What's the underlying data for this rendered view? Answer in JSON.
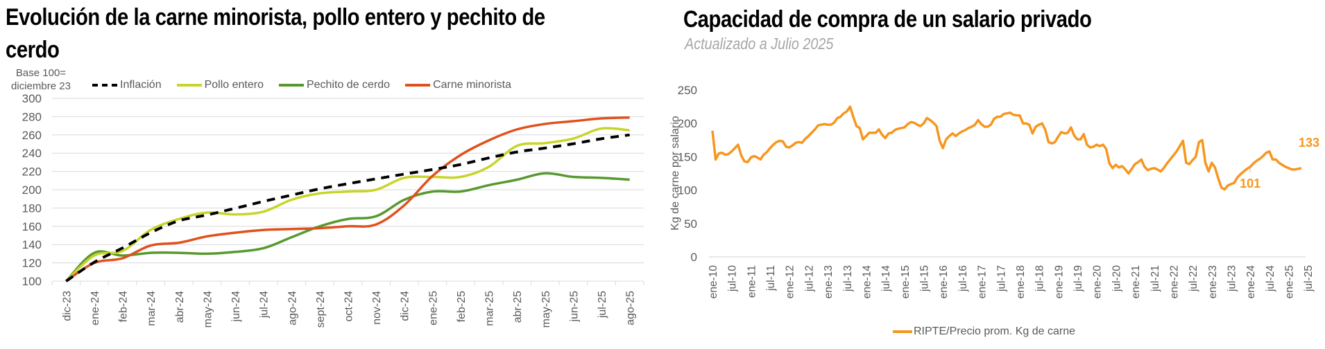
{
  "left": {
    "title": "Evolución de la carne minorista, pollo entero y pechito de cerdo",
    "base_label_1": "Base 100=",
    "base_label_2": "diciembre 23"
  },
  "right": {
    "title": "Capacidad de compra de un salario privado",
    "subtitle": "Actualizado a Julio 2025"
  },
  "chart_data": [
    {
      "type": "line",
      "title": "Evolución de la carne minorista, pollo entero y pechito de cerdo",
      "ylabel": "Base 100= diciembre 23",
      "xlabel": "",
      "ylim": [
        100,
        300
      ],
      "yticks": [
        100,
        120,
        140,
        160,
        180,
        200,
        220,
        240,
        260,
        280,
        300
      ],
      "grid": true,
      "legend_position": "top",
      "categories": [
        "dic-23",
        "ene-24",
        "feb-24",
        "mar-24",
        "abr-24",
        "may-24",
        "jun-24",
        "jul-24",
        "ago-24",
        "sept-24",
        "oct-24",
        "nov-24",
        "dic-24",
        "ene-25",
        "feb-25",
        "mar-25",
        "abr-25",
        "may-25",
        "jun-25",
        "jul-25",
        "ago-25"
      ],
      "series": [
        {
          "name": "Inflación",
          "color": "#000000",
          "dashed": true,
          "values": [
            100,
            120.7,
            136.3,
            153.0,
            166.0,
            172.4,
            179.7,
            187.2,
            194.1,
            201.0,
            206.6,
            211.9,
            217.1,
            222.1,
            227.6,
            234.8,
            241.3,
            245.6,
            250.3,
            255.8,
            260.0
          ]
        },
        {
          "name": "Pollo entero",
          "color": "#c8d42a",
          "dashed": false,
          "values": [
            100,
            128,
            133,
            156,
            168,
            175,
            173,
            176,
            189,
            196,
            198,
            200,
            213,
            214,
            214,
            225,
            248,
            251,
            256,
            267,
            265
          ]
        },
        {
          "name": "Pechito de cerdo",
          "color": "#57992f",
          "dashed": false,
          "values": [
            100,
            131,
            128,
            131,
            131,
            130,
            132,
            136,
            148,
            160,
            168,
            171,
            189,
            198,
            198,
            205,
            211,
            218,
            214,
            213,
            211
          ]
        },
        {
          "name": "Carne minorista",
          "color": "#e0501c",
          "dashed": false,
          "values": [
            100,
            120,
            125,
            139,
            142,
            149,
            153,
            156,
            157,
            158,
            160,
            162,
            183,
            215,
            238,
            254,
            266,
            272,
            275,
            278,
            279
          ]
        }
      ]
    },
    {
      "type": "line",
      "title": "Capacidad de compra de un salario privado",
      "subtitle": "Actualizado a Julio 2025",
      "ylabel": "Kg de carne por salario",
      "xlabel": "",
      "ylim": [
        0,
        250
      ],
      "yticks": [
        0,
        50,
        100,
        150,
        200,
        250
      ],
      "grid": false,
      "legend_position": "bottom",
      "x_start": "ene-10",
      "x_end": "jul-25",
      "xticks": [
        "ene-10",
        "jul-10",
        "ene-11",
        "jul-11",
        "ene-12",
        "jul-12",
        "ene-13",
        "jul-13",
        "ene-14",
        "jul-14",
        "ene-15",
        "jul-15",
        "ene-16",
        "jul-16",
        "ene-17",
        "jul-17",
        "ene-18",
        "jul-18",
        "ene-19",
        "jul-19",
        "ene-20",
        "jul-20",
        "ene-21",
        "jul-21",
        "ene-22",
        "jul-22",
        "ene-23",
        "jul-23",
        "ene-24",
        "jul-24",
        "ene-25",
        "jul-25"
      ],
      "series": [
        {
          "name": "RIPTE/Precio prom. Kg de carne",
          "color": "#f7961d",
          "values": [
            189,
            146,
            155,
            156,
            153,
            154,
            158,
            163,
            168,
            152,
            143,
            142,
            149,
            151,
            149,
            146,
            153,
            157,
            163,
            168,
            172,
            174,
            173,
            165,
            164,
            167,
            171,
            172,
            171,
            177,
            181,
            186,
            191,
            197,
            198,
            199,
            198,
            198,
            201,
            208,
            210,
            215,
            218,
            225,
            210,
            196,
            193,
            176,
            181,
            186,
            186,
            186,
            191,
            183,
            178,
            185,
            186,
            190,
            192,
            193,
            194,
            199,
            202,
            201,
            198,
            196,
            200,
            208,
            205,
            201,
            196,
            174,
            163,
            176,
            181,
            185,
            181,
            185,
            188,
            190,
            193,
            195,
            198,
            205,
            199,
            195,
            195,
            198,
            207,
            210,
            210,
            214,
            215,
            216,
            213,
            212,
            212,
            200,
            200,
            198,
            185,
            195,
            198,
            200,
            190,
            172,
            170,
            172,
            180,
            187,
            185,
            186,
            194,
            182,
            176,
            176,
            184,
            168,
            164,
            165,
            168,
            166,
            168,
            162,
            140,
            133,
            138,
            134,
            136,
            131,
            125,
            132,
            139,
            142,
            146,
            135,
            130,
            132,
            133,
            131,
            128,
            133,
            140,
            146,
            152,
            158,
            166,
            174,
            141,
            139,
            145,
            150,
            172,
            175,
            141,
            128,
            141,
            134,
            118,
            104,
            101,
            107,
            109,
            111,
            119,
            124,
            128,
            132,
            135,
            140,
            144,
            147,
            151,
            156,
            158,
            146,
            146,
            141,
            138,
            135,
            133,
            131,
            131,
            132,
            133
          ],
          "annotations": [
            {
              "label": "101",
              "point": "ene-24"
            },
            {
              "label": "133",
              "point": "jul-25"
            }
          ]
        }
      ]
    }
  ]
}
